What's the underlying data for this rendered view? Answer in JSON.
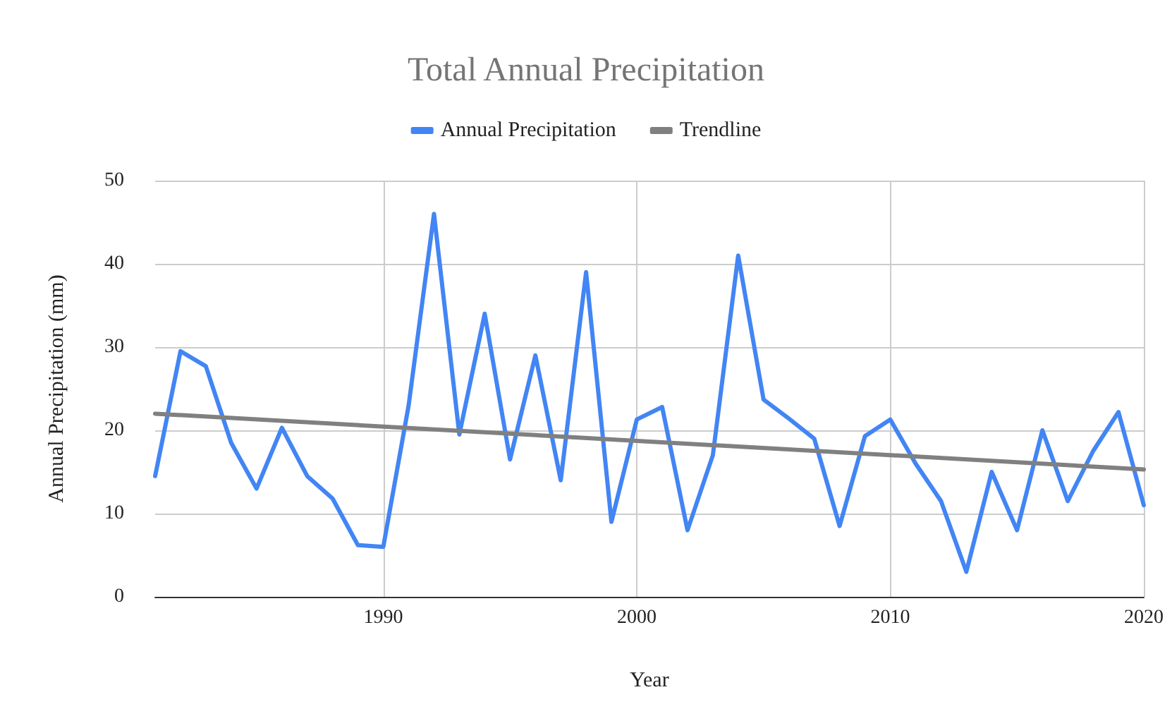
{
  "chart_data": {
    "type": "line",
    "title": "Total Annual Precipitation",
    "xlabel": "Year",
    "ylabel": "Annual Precipitation (mm)",
    "x": [
      1981,
      1982,
      1983,
      1984,
      1985,
      1986,
      1987,
      1988,
      1989,
      1990,
      1991,
      1992,
      1993,
      1994,
      1995,
      1996,
      1997,
      1998,
      1999,
      2000,
      2001,
      2002,
      2003,
      2004,
      2005,
      2006,
      2007,
      2008,
      2009,
      2010,
      2011,
      2012,
      2013,
      2014,
      2015,
      2016,
      2017,
      2018,
      2019,
      2020
    ],
    "series": [
      {
        "name": "Annual Precipitation",
        "color": "#4285f4",
        "values": [
          14.5,
          29.5,
          27.7,
          18.5,
          13,
          20.3,
          14.5,
          11.8,
          6.2,
          6,
          23,
          46,
          19.5,
          34,
          16.5,
          29,
          14,
          39,
          9,
          21.3,
          22.8,
          8,
          17,
          41,
          23.7,
          21.4,
          19,
          8.5,
          19.3,
          21.3,
          16,
          11.5,
          3,
          15,
          8,
          20,
          11.5,
          17.5,
          22.2,
          11
        ]
      },
      {
        "name": "Trendline",
        "color": "#808080",
        "x": [
          1981,
          2020
        ],
        "values": [
          22,
          15.3
        ]
      }
    ],
    "xlim": [
      1981,
      2020
    ],
    "xticks": [
      1990,
      2000,
      2010,
      2020
    ],
    "ylim": [
      0,
      50
    ],
    "yticks": [
      0,
      10,
      20,
      30,
      40,
      50
    ],
    "grid": true,
    "legend": "top",
    "marker": "none",
    "line_style": "solid"
  }
}
